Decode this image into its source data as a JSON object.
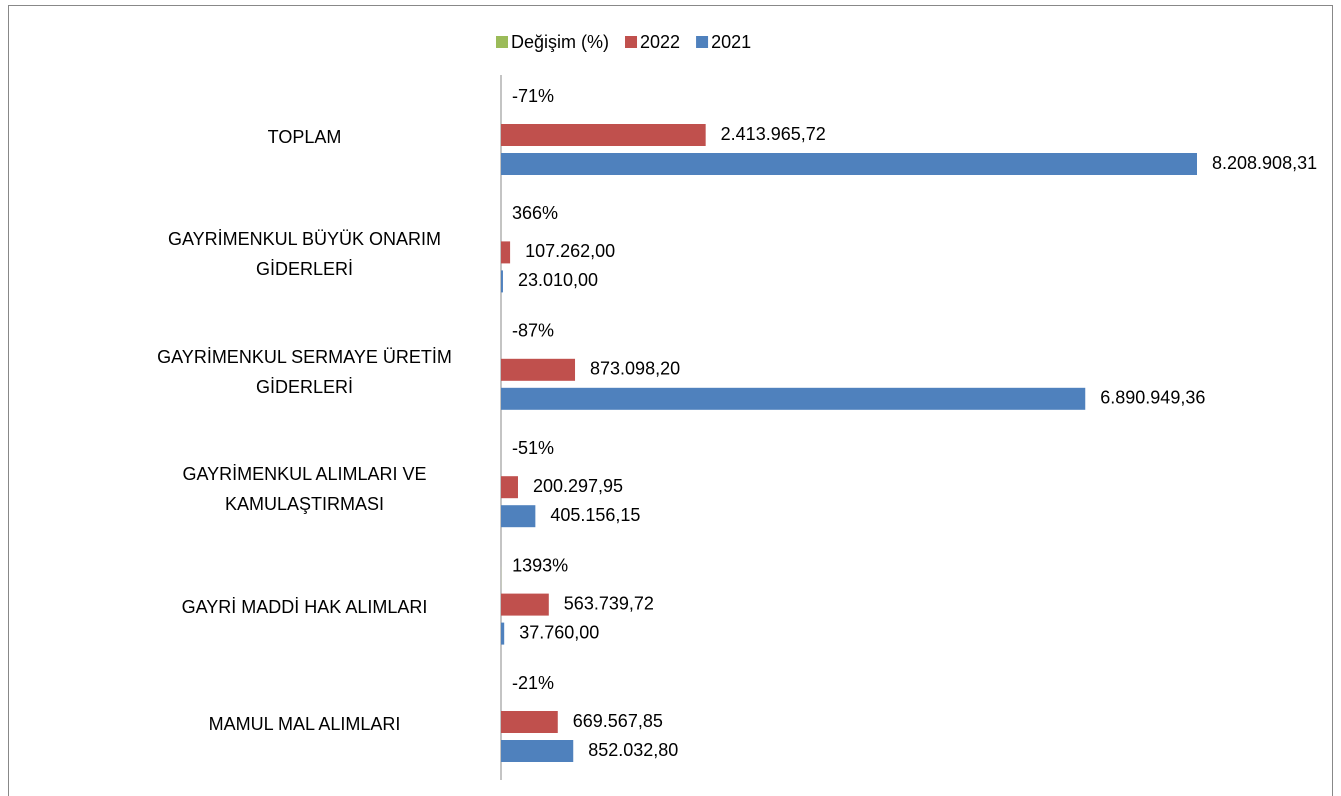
{
  "chart_data": {
    "type": "hbar",
    "categories": [
      "TOPLAM",
      "GAYRİMENKUL BÜYÜK ONARIM GİDERLERİ",
      "GAYRİMENKUL SERMAYE ÜRETİM GİDERLERİ",
      "GAYRİMENKUL ALIMLARI VE KAMULAŞTIRMASI",
      "GAYRİ MADDİ HAK ALIMLARI",
      "MAMUL MAL ALIMLARI"
    ],
    "series": [
      {
        "name": "Değişim (%)",
        "color": "#9bbb59",
        "values": [
          -71,
          366,
          -87,
          -51,
          1393,
          -21
        ],
        "value_labels": [
          "-71%",
          "366%",
          "-87%",
          "-51%",
          "1393%",
          "-21%"
        ]
      },
      {
        "name": "2022",
        "color": "#c0504d",
        "values": [
          2413965.72,
          107262.0,
          873098.2,
          200297.95,
          563739.72,
          669567.85
        ],
        "value_labels": [
          "2.413.965,72",
          "107.262,00",
          "873.098,20",
          "200.297,95",
          "563.739,72",
          "669.567,85"
        ]
      },
      {
        "name": "2021",
        "color": "#4f81bd",
        "values": [
          8208908.31,
          23010.0,
          6890949.36,
          405156.15,
          37760.0,
          852032.8
        ],
        "value_labels": [
          "8.208.908,31",
          "23.010,00",
          "6.890.949,36",
          "405.156,15",
          "37.760,00",
          "852.032,80"
        ]
      }
    ],
    "legend": "top"
  }
}
